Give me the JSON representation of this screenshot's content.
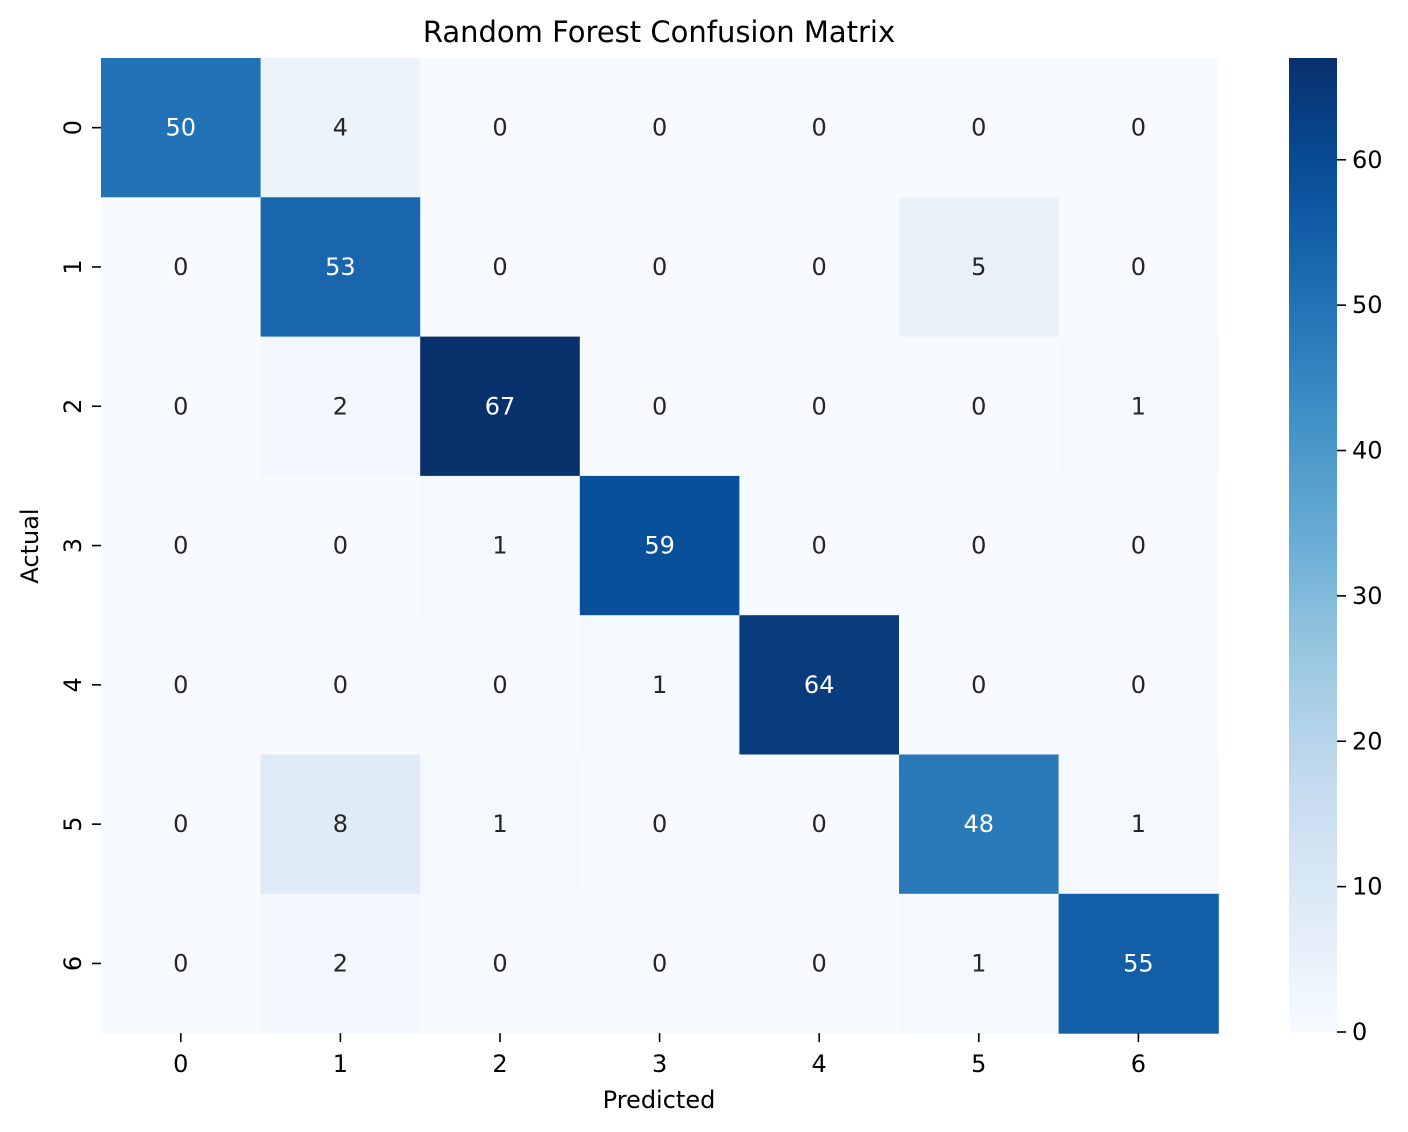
{
  "chart_data": {
    "type": "heatmap",
    "title": "Random Forest Confusion Matrix",
    "xlabel": "Predicted",
    "ylabel": "Actual",
    "x_categories": [
      "0",
      "1",
      "2",
      "3",
      "4",
      "5",
      "6"
    ],
    "y_categories": [
      "0",
      "1",
      "2",
      "3",
      "4",
      "5",
      "6"
    ],
    "values": [
      [
        50,
        4,
        0,
        0,
        0,
        0,
        0
      ],
      [
        0,
        53,
        0,
        0,
        0,
        5,
        0
      ],
      [
        0,
        2,
        67,
        0,
        0,
        0,
        1
      ],
      [
        0,
        0,
        1,
        59,
        0,
        0,
        0
      ],
      [
        0,
        0,
        0,
        1,
        64,
        0,
        0
      ],
      [
        0,
        8,
        1,
        0,
        0,
        48,
        1
      ],
      [
        0,
        2,
        0,
        0,
        0,
        1,
        55
      ]
    ],
    "colormap": "Blues",
    "colorbar": {
      "min": 0,
      "max": 67,
      "ticks": [
        0,
        10,
        20,
        30,
        40,
        50,
        60
      ]
    },
    "colors": {
      "low": "#f7fbff",
      "high": "#08306b",
      "text_dark": "#262626",
      "text_light": "#ffffff"
    },
    "grid": false,
    "legend": "colorbar-right"
  }
}
